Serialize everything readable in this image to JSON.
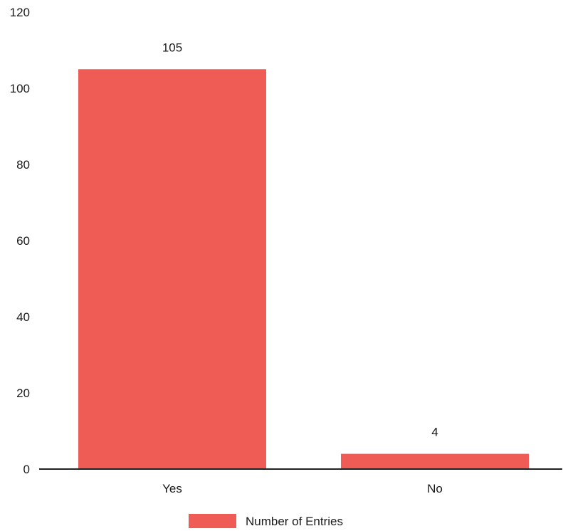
{
  "chart_data": {
    "type": "bar",
    "categories": [
      "Yes",
      "No"
    ],
    "series": [
      {
        "name": "Number of Entries",
        "values": [
          105,
          4
        ],
        "color": "#ef5b55"
      }
    ],
    "data_labels": [
      "105",
      "4"
    ],
    "ylim": [
      0,
      120
    ],
    "yticks": [
      0,
      20,
      40,
      60,
      80,
      100,
      120
    ],
    "ytick_labels": [
      "0",
      "20",
      "40",
      "60",
      "80",
      "100",
      "120"
    ],
    "grid": false,
    "legend": {
      "position": "bottom",
      "label": "Number of Entries"
    },
    "axis_color": "#222222"
  }
}
